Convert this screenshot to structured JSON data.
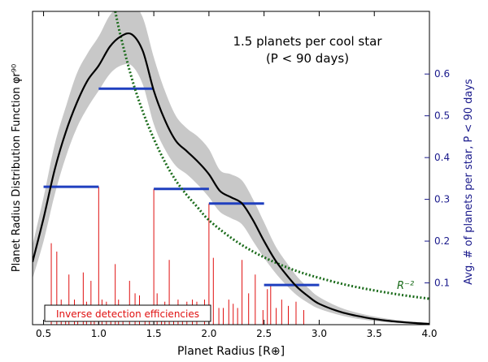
{
  "chart_data": {
    "type": "line",
    "title": "",
    "annotation_lines": [
      "1.5 planets per cool star",
      "(P < 90 days)"
    ],
    "xlabel": "Planet Radius [R⊕]",
    "ylabel_left": "Planet Radius Distribution Function φr⁹⁰",
    "ylabel_right": "Avg. # of planets per star, P < 90 days",
    "xlim": [
      0.4,
      4.0
    ],
    "ylim_right": [
      0.0,
      0.75
    ],
    "x_ticks": [
      "0.5",
      "1.0",
      "1.5",
      "2.0",
      "2.5",
      "3.0",
      "3.5",
      "4.0"
    ],
    "x_tick_values": [
      0.5,
      1.0,
      1.5,
      2.0,
      2.5,
      3.0,
      3.5,
      4.0
    ],
    "y_right_ticks": [
      "0.1",
      "0.2",
      "0.3",
      "0.4",
      "0.5",
      "0.6"
    ],
    "y_right_tick_values": [
      0.1,
      0.2,
      0.3,
      0.4,
      0.5,
      0.6
    ],
    "power_law_label": "R⁻²",
    "legend_box_label": "Inverse detection efficiencies",
    "colors": {
      "curve": "#000000",
      "band": "#c8c8c8",
      "power_law": "#1a6b1a",
      "bins": "#1f3fbf",
      "stems": "#e01010",
      "right_axis": "#1a1a8c",
      "legend_text": "#e01010"
    },
    "distribution_curve": [
      [
        0.4,
        0.15
      ],
      [
        0.5,
        0.255
      ],
      [
        0.6,
        0.37
      ],
      [
        0.7,
        0.46
      ],
      [
        0.8,
        0.53
      ],
      [
        0.9,
        0.585
      ],
      [
        1.0,
        0.62
      ],
      [
        1.1,
        0.665
      ],
      [
        1.2,
        0.69
      ],
      [
        1.3,
        0.695
      ],
      [
        1.4,
        0.655
      ],
      [
        1.5,
        0.56
      ],
      [
        1.6,
        0.49
      ],
      [
        1.7,
        0.44
      ],
      [
        1.8,
        0.415
      ],
      [
        1.9,
        0.39
      ],
      [
        2.0,
        0.36
      ],
      [
        2.1,
        0.32
      ],
      [
        2.2,
        0.305
      ],
      [
        2.3,
        0.29
      ],
      [
        2.4,
        0.25
      ],
      [
        2.5,
        0.2
      ],
      [
        2.6,
        0.155
      ],
      [
        2.7,
        0.12
      ],
      [
        2.8,
        0.09
      ],
      [
        2.9,
        0.068
      ],
      [
        3.0,
        0.05
      ],
      [
        3.2,
        0.03
      ],
      [
        3.4,
        0.018
      ],
      [
        3.6,
        0.01
      ],
      [
        3.8,
        0.005
      ],
      [
        4.0,
        0.002
      ]
    ],
    "uncertainty_band": [
      [
        0.4,
        0.11,
        0.19
      ],
      [
        0.5,
        0.2,
        0.305
      ],
      [
        0.6,
        0.31,
        0.43
      ],
      [
        0.7,
        0.4,
        0.52
      ],
      [
        0.8,
        0.47,
        0.6
      ],
      [
        0.9,
        0.52,
        0.65
      ],
      [
        1.0,
        0.56,
        0.69
      ],
      [
        1.1,
        0.6,
        0.74
      ],
      [
        1.2,
        0.62,
        0.765
      ],
      [
        1.3,
        0.62,
        0.77
      ],
      [
        1.4,
        0.575,
        0.735
      ],
      [
        1.5,
        0.48,
        0.64
      ],
      [
        1.6,
        0.42,
        0.56
      ],
      [
        1.7,
        0.38,
        0.5
      ],
      [
        1.8,
        0.36,
        0.47
      ],
      [
        1.9,
        0.335,
        0.45
      ],
      [
        2.0,
        0.305,
        0.42
      ],
      [
        2.1,
        0.27,
        0.37
      ],
      [
        2.2,
        0.255,
        0.36
      ],
      [
        2.3,
        0.24,
        0.345
      ],
      [
        2.4,
        0.2,
        0.3
      ],
      [
        2.5,
        0.16,
        0.245
      ],
      [
        2.6,
        0.125,
        0.19
      ],
      [
        2.7,
        0.095,
        0.15
      ],
      [
        2.8,
        0.07,
        0.115
      ],
      [
        2.9,
        0.052,
        0.088
      ],
      [
        3.0,
        0.038,
        0.066
      ],
      [
        3.2,
        0.022,
        0.04
      ],
      [
        3.4,
        0.012,
        0.025
      ],
      [
        3.6,
        0.006,
        0.015
      ],
      [
        3.8,
        0.003,
        0.008
      ],
      [
        4.0,
        0.001,
        0.004
      ]
    ],
    "power_law_curve": [
      [
        1.15,
        0.75
      ],
      [
        1.2,
        0.69
      ],
      [
        1.3,
        0.59
      ],
      [
        1.4,
        0.51
      ],
      [
        1.5,
        0.445
      ],
      [
        1.6,
        0.39
      ],
      [
        1.7,
        0.345
      ],
      [
        1.8,
        0.31
      ],
      [
        1.9,
        0.28
      ],
      [
        2.0,
        0.25
      ],
      [
        2.2,
        0.208
      ],
      [
        2.4,
        0.175
      ],
      [
        2.6,
        0.149
      ],
      [
        2.8,
        0.128
      ],
      [
        3.0,
        0.112
      ],
      [
        3.25,
        0.095
      ],
      [
        3.5,
        0.082
      ],
      [
        3.75,
        0.071
      ],
      [
        4.0,
        0.062
      ]
    ],
    "bins": [
      {
        "x0": 0.5,
        "x1": 1.0,
        "y": 0.33
      },
      {
        "x0": 1.0,
        "x1": 1.5,
        "y": 0.565
      },
      {
        "x0": 1.5,
        "x1": 2.0,
        "y": 0.325
      },
      {
        "x0": 2.0,
        "x1": 2.5,
        "y": 0.29
      },
      {
        "x0": 2.5,
        "x1": 3.0,
        "y": 0.095
      }
    ],
    "detection_stems": [
      [
        0.57,
        0.195
      ],
      [
        0.62,
        0.175
      ],
      [
        0.66,
        0.06
      ],
      [
        0.7,
        0.045
      ],
      [
        0.73,
        0.12
      ],
      [
        0.78,
        0.06
      ],
      [
        0.81,
        0.045
      ],
      [
        0.86,
        0.125
      ],
      [
        0.89,
        0.055
      ],
      [
        0.93,
        0.105
      ],
      [
        0.96,
        0.045
      ],
      [
        1.0,
        0.33
      ],
      [
        1.03,
        0.06
      ],
      [
        1.07,
        0.055
      ],
      [
        1.11,
        0.04
      ],
      [
        1.15,
        0.145
      ],
      [
        1.18,
        0.06
      ],
      [
        1.22,
        0.04
      ],
      [
        1.28,
        0.105
      ],
      [
        1.33,
        0.075
      ],
      [
        1.37,
        0.07
      ],
      [
        1.42,
        0.04
      ],
      [
        1.46,
        0.04
      ],
      [
        1.5,
        0.325
      ],
      [
        1.53,
        0.075
      ],
      [
        1.57,
        0.04
      ],
      [
        1.6,
        0.055
      ],
      [
        1.64,
        0.155
      ],
      [
        1.68,
        0.04
      ],
      [
        1.72,
        0.06
      ],
      [
        1.76,
        0.045
      ],
      [
        1.8,
        0.055
      ],
      [
        1.85,
        0.06
      ],
      [
        1.89,
        0.055
      ],
      [
        1.96,
        0.06
      ],
      [
        2.0,
        0.29
      ],
      [
        2.04,
        0.16
      ],
      [
        2.09,
        0.04
      ],
      [
        2.13,
        0.04
      ],
      [
        2.18,
        0.06
      ],
      [
        2.22,
        0.05
      ],
      [
        2.26,
        0.04
      ],
      [
        2.3,
        0.155
      ],
      [
        2.36,
        0.075
      ],
      [
        2.42,
        0.12
      ],
      [
        2.49,
        0.035
      ],
      [
        2.53,
        0.085
      ],
      [
        2.56,
        0.095
      ],
      [
        2.61,
        0.04
      ],
      [
        2.66,
        0.06
      ],
      [
        2.72,
        0.045
      ],
      [
        2.79,
        0.055
      ],
      [
        2.86,
        0.035
      ]
    ]
  }
}
